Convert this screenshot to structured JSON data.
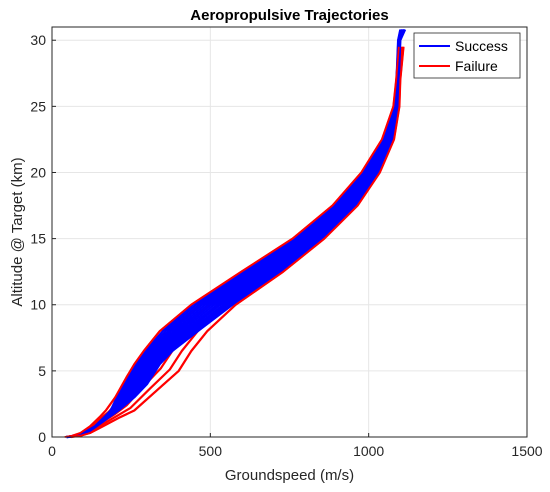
{
  "chart_data": {
    "type": "line",
    "title": "Aeropropulsive Trajectories",
    "xlabel": "Groundspeed (m/s)",
    "ylabel": "Altitude @ Target (km)",
    "xlim": [
      0,
      1500
    ],
    "ylim": [
      0,
      31
    ],
    "xticks": [
      0,
      500,
      1000,
      1500
    ],
    "yticks": [
      0,
      5,
      10,
      15,
      20,
      25,
      30
    ],
    "grid": true,
    "legend": {
      "placement": "top-right",
      "entries": [
        "Success",
        "Failure"
      ]
    },
    "colors": {
      "Success": "#0000ff",
      "Failure": "#ff0000"
    },
    "series": [
      {
        "name": "Success",
        "bands": [
          {
            "y": [
              30.8,
              30,
              27,
              25,
              22.5,
              20,
              17.5,
              15,
              12.5,
              10,
              8,
              6.5,
              5.5,
              4,
              3,
              2,
              1.5,
              0.8,
              0.3,
              0.1,
              0
            ],
            "x": [
              1115,
              1100,
              1095,
              1092,
              1075,
              1030,
              960,
              855,
              720,
              570,
              460,
              380,
              340,
              300,
              260,
              210,
              180,
              140,
              110,
              80,
              50
            ]
          },
          {
            "y": [
              30.8,
              30,
              27,
              25,
              22.5,
              20,
              17.5,
              15,
              12.5,
              10,
              8,
              6.5,
              5.5,
              4,
              3,
              2,
              1.5,
              0.8,
              0.3,
              0.1,
              0
            ],
            "x": [
              1100,
              1093,
              1088,
              1080,
              1045,
              980,
              890,
              765,
              605,
              445,
              350,
              295,
              265,
              230,
              205,
              185,
              165,
              135,
              100,
              70,
              45
            ]
          }
        ]
      },
      {
        "name": "Failure",
        "bands": [
          {
            "y": [
              29.5,
              27,
              25,
              22.5,
              20,
              17.5,
              15,
              12.5,
              10,
              8,
              6.5,
              5,
              3.5,
              2,
              1.5,
              0.8,
              0.3,
              0.1,
              0
            ],
            "x": [
              1110,
              1100,
              1097,
              1080,
              1035,
              965,
              860,
              730,
              580,
              490,
              440,
              400,
              330,
              260,
              215,
              160,
              120,
              90,
              60
            ]
          },
          {
            "y": [
              29.5,
              27,
              25,
              22.5,
              20,
              17.5,
              15,
              12.5,
              10,
              8,
              6.5,
              5.5,
              4.5,
              3,
              2,
              1.5,
              0.8,
              0.3,
              0.1,
              0
            ],
            "x": [
              1095,
              1087,
              1078,
              1042,
              977,
              886,
              760,
              598,
              440,
              340,
              290,
              260,
              235,
              200,
              170,
              150,
              120,
              90,
              65,
              40
            ]
          }
        ]
      }
    ]
  }
}
